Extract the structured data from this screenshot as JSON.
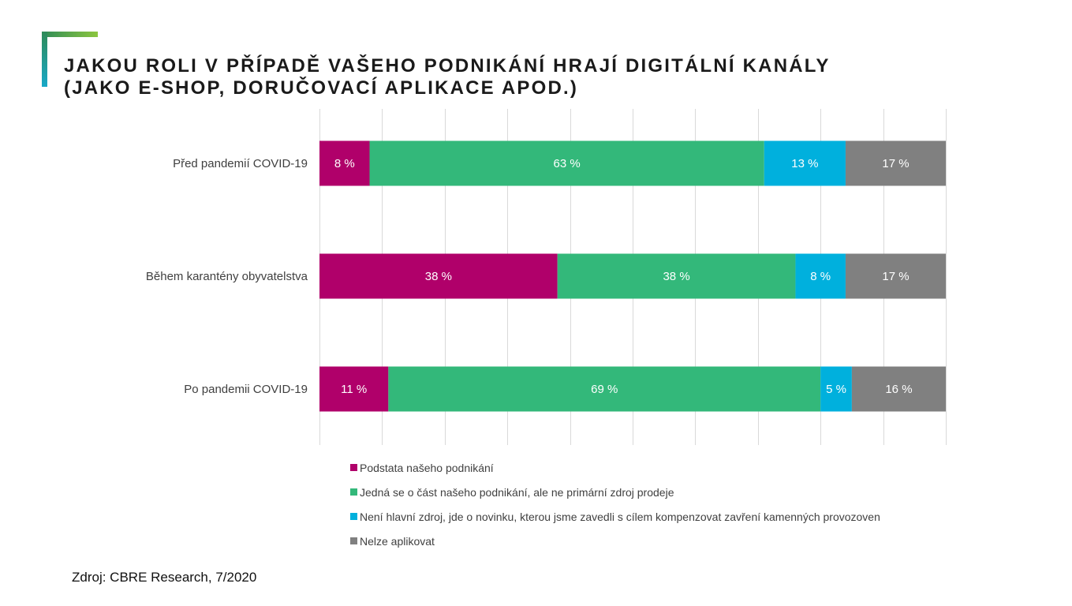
{
  "header": {
    "title_line1": "JAKOU ROLI V PŘÍPADĚ VAŠEHO PODNIKÁNÍ HRAJÍ DIGITÁLNÍ KANÁLY",
    "title_line2": "(JAKO E-SHOP, DORUČOVACÍ APLIKACE APOD.)"
  },
  "chart_data": {
    "type": "bar",
    "orientation": "horizontal",
    "stacked": true,
    "categories": [
      "Před pandemií COVID-19",
      "Během karantény obyvatelstva",
      "Po pandemii COVID-19"
    ],
    "series": [
      {
        "name": "Podstata našeho podnikání",
        "color": "#b0006a",
        "values": [
          8,
          38,
          11
        ],
        "labels": [
          "8 %",
          "38 %",
          "11 %"
        ]
      },
      {
        "name": "Jedná se o část našeho podnikání, ale ne primární zdroj prodeje",
        "color": "#33b87a",
        "values": [
          63,
          38,
          69
        ],
        "labels": [
          "63 %",
          "38 %",
          "69 %"
        ]
      },
      {
        "name": "Není hlavní zdroj, jde o novinku, kterou jsme zavedli s cílem kompenzovat zavření kamenných provozoven",
        "color": "#00b0dd",
        "values": [
          13,
          8,
          5
        ],
        "labels": [
          "13 %",
          "8 %",
          "5 %"
        ]
      },
      {
        "name": "Nelze aplikovat",
        "color": "#808080",
        "values": [
          17,
          17,
          16
        ],
        "labels": [
          "17 %",
          "17 %",
          "16 %"
        ]
      }
    ],
    "xlim": [
      0,
      100
    ],
    "grid": true,
    "legend_position": "bottom"
  },
  "footer": {
    "source": "Zdroj: CBRE Research, 7/2020"
  }
}
